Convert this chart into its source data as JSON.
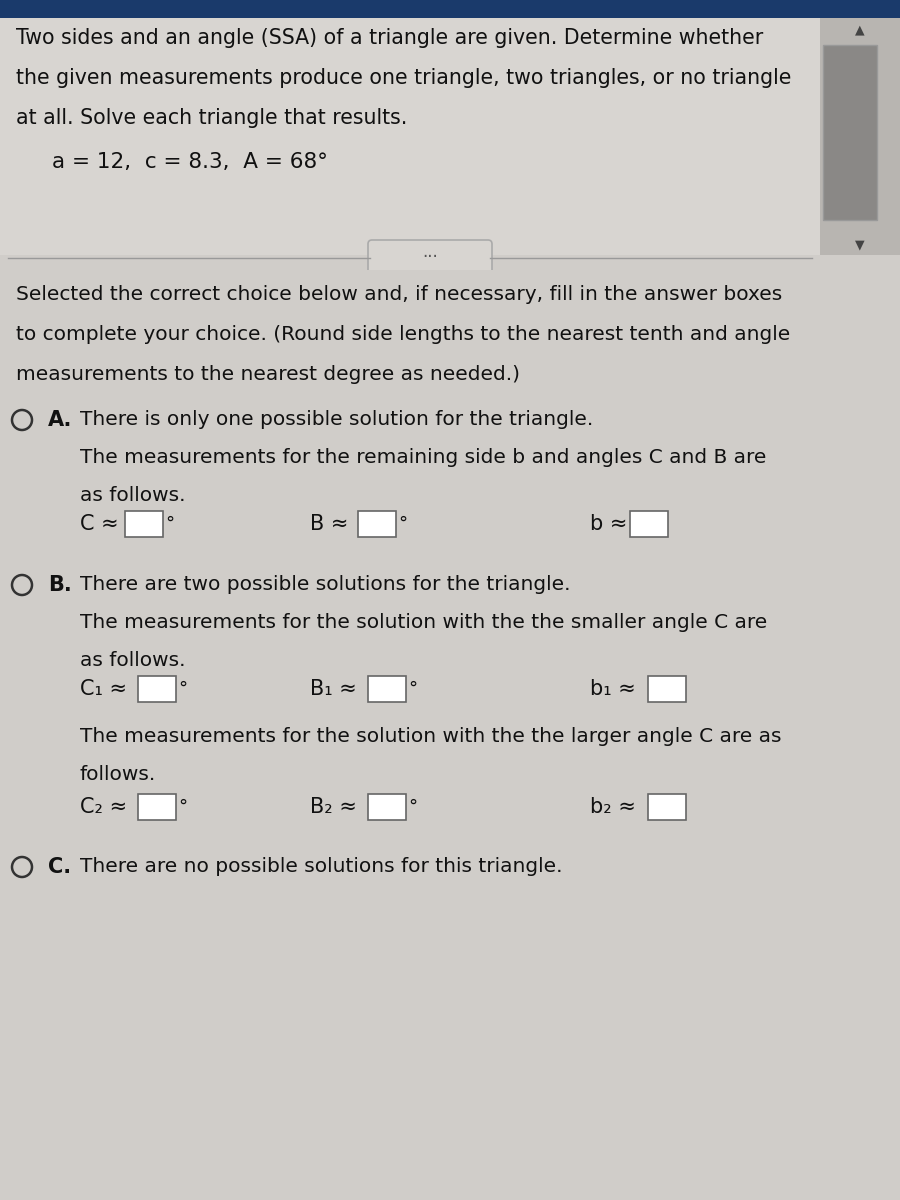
{
  "bg_color": "#d0cdc9",
  "top_bg": "#d8d5d1",
  "text_color": "#111111",
  "title_text_line1": "Two sides and an angle (SSA) of a triangle are given. Determine whether",
  "title_text_line2": "the given measurements produce one triangle, two triangles, or no triangle",
  "title_text_line3": "at all. Solve each triangle that results.",
  "given_text": "a = 12,  c = 8.3,  A = 68°",
  "instruction_line1": "Selected the correct choice below and, if necessary, fill in the answer boxes",
  "instruction_line2": "to complete your choice. (Round side lengths to the nearest tenth and angle",
  "instruction_line3": "measurements to the nearest degree as needed.)",
  "choice_A_label": "A.",
  "choice_A_line1": "There is only one possible solution for the triangle.",
  "choice_A_line2": "The measurements for the remaining side b and angles C and B are",
  "choice_A_line3": "as follows.",
  "choice_B_label": "B.",
  "choice_B_line1": "There are two possible solutions for the triangle.",
  "choice_B_line2": "The measurements for the solution with the the smaller angle C are",
  "choice_B_line3": "as follows.",
  "choice_B_mid1": "The measurements for the solution with the the larger angle C are as",
  "choice_B_mid2": "follows.",
  "choice_C_label": "C.",
  "choice_C_line1": "There are no possible solutions for this triangle.",
  "scrollbar_bg": "#b0aeaa",
  "scrollbar_thumb": "#888480",
  "top_blue": "#1a3a6b"
}
